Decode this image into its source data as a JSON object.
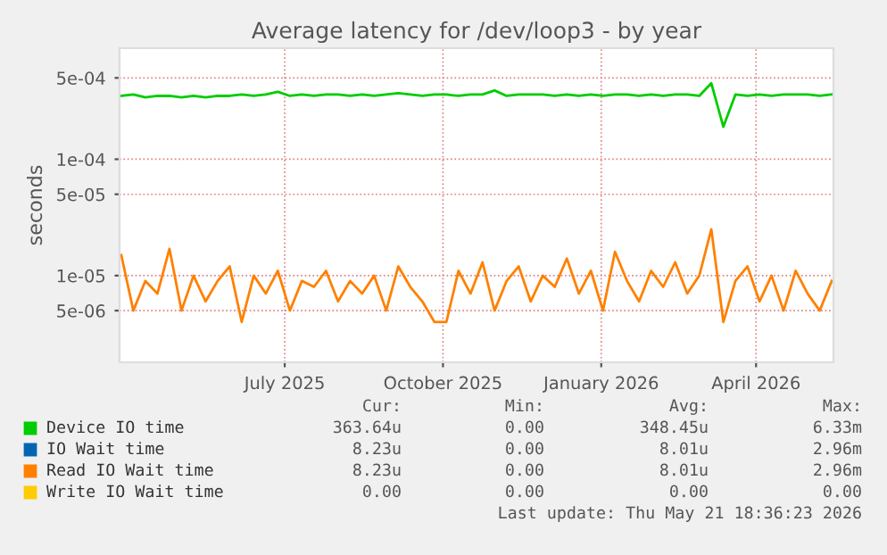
{
  "chart_data": {
    "type": "line",
    "title": "Average latency for /dev/loop3 - by year",
    "ylabel": "seconds",
    "log": "y",
    "grid": true,
    "legend": "bottom",
    "marker": "none",
    "line_style": "solid",
    "x": [
      "2025-03-28",
      "2025-04-04",
      "2025-04-11",
      "2025-04-18",
      "2025-04-25",
      "2025-05-02",
      "2025-05-09",
      "2025-05-16",
      "2025-05-23",
      "2025-05-30",
      "2025-06-06",
      "2025-06-13",
      "2025-06-20",
      "2025-06-27",
      "2025-07-04",
      "2025-07-11",
      "2025-07-18",
      "2025-07-25",
      "2025-08-01",
      "2025-08-08",
      "2025-08-15",
      "2025-08-22",
      "2025-08-29",
      "2025-09-05",
      "2025-09-12",
      "2025-09-19",
      "2025-09-26",
      "2025-10-03",
      "2025-10-10",
      "2025-10-17",
      "2025-10-24",
      "2025-10-31",
      "2025-11-07",
      "2025-11-14",
      "2025-11-21",
      "2025-11-28",
      "2025-12-05",
      "2025-12-12",
      "2025-12-19",
      "2025-12-26",
      "2026-01-02",
      "2026-01-09",
      "2026-01-16",
      "2026-01-23",
      "2026-01-30",
      "2026-02-06",
      "2026-02-13",
      "2026-02-20",
      "2026-02-27",
      "2026-03-06",
      "2026-03-13",
      "2026-03-20",
      "2026-03-27",
      "2026-04-03",
      "2026-04-10",
      "2026-04-17",
      "2026-04-24",
      "2026-05-01",
      "2026-05-08",
      "2026-05-15"
    ],
    "series": [
      {
        "name": "Device IO time",
        "color": "#00cc00",
        "values": [
          0.00035,
          0.00036,
          0.00034,
          0.00035,
          0.00035,
          0.00034,
          0.00035,
          0.00034,
          0.00035,
          0.00035,
          0.00036,
          0.00035,
          0.00036,
          0.00038,
          0.00035,
          0.00036,
          0.00035,
          0.00036,
          0.00036,
          0.00035,
          0.00036,
          0.00035,
          0.00036,
          0.00037,
          0.00036,
          0.00035,
          0.00036,
          0.00036,
          0.00035,
          0.00036,
          0.00036,
          0.00039,
          0.00035,
          0.00036,
          0.00036,
          0.00036,
          0.00035,
          0.00036,
          0.00035,
          0.00036,
          0.00035,
          0.00036,
          0.00036,
          0.00035,
          0.00036,
          0.00035,
          0.00036,
          0.00036,
          0.00035,
          0.00045,
          0.00019,
          0.00036,
          0.00035,
          0.00036,
          0.00035,
          0.00036,
          0.00036,
          0.00036,
          0.00035,
          0.00036
        ]
      },
      {
        "name": "IO Wait time",
        "color": "#0066b3",
        "values": [
          null,
          null,
          null,
          null,
          null,
          null,
          null,
          null,
          null,
          null,
          null,
          null,
          null,
          null,
          null,
          null,
          null,
          null,
          null,
          null,
          null,
          null,
          null,
          null,
          null,
          null,
          null,
          null,
          null,
          null,
          null,
          null,
          null,
          null,
          null,
          null,
          null,
          null,
          null,
          null,
          null,
          null,
          null,
          null,
          null,
          null,
          null,
          null,
          null,
          null,
          null,
          null,
          null,
          null,
          null,
          null,
          null,
          null,
          null,
          null
        ]
      },
      {
        "name": "Read IO Wait time",
        "color": "#ff8000",
        "values": [
          1.5e-05,
          5e-06,
          9e-06,
          7e-06,
          1.7e-05,
          5e-06,
          1e-05,
          6e-06,
          9e-06,
          1.2e-05,
          4e-06,
          1e-05,
          7e-06,
          1.1e-05,
          5e-06,
          9e-06,
          8e-06,
          1.1e-05,
          6e-06,
          9e-06,
          7e-06,
          1e-05,
          5e-06,
          1.2e-05,
          8e-06,
          6e-06,
          4e-06,
          4e-06,
          1.1e-05,
          7e-06,
          1.3e-05,
          5e-06,
          9e-06,
          1.2e-05,
          6e-06,
          1e-05,
          8e-06,
          1.4e-05,
          7e-06,
          1.1e-05,
          5e-06,
          1.6e-05,
          9e-06,
          6e-06,
          1.1e-05,
          8e-06,
          1.3e-05,
          7e-06,
          1e-05,
          2.5e-05,
          4e-06,
          9e-06,
          1.2e-05,
          6e-06,
          1e-05,
          5e-06,
          1.1e-05,
          7e-06,
          5e-06,
          9e-06
        ]
      },
      {
        "name": "Write IO Wait time",
        "color": "#ffcc00",
        "values": [
          null,
          null,
          null,
          null,
          null,
          null,
          null,
          null,
          null,
          null,
          null,
          null,
          null,
          null,
          null,
          null,
          null,
          null,
          null,
          null,
          null,
          null,
          null,
          null,
          null,
          null,
          null,
          null,
          null,
          null,
          null,
          null,
          null,
          null,
          null,
          null,
          null,
          null,
          null,
          null,
          null,
          null,
          null,
          null,
          null,
          null,
          null,
          null,
          null,
          null,
          null,
          null,
          null,
          null,
          null,
          null,
          null,
          null,
          null,
          null
        ]
      }
    ],
    "xlim": [
      "2025-03-27",
      "2026-05-16"
    ],
    "xticks": [
      {
        "value": "2025-07-01",
        "label": "July 2025"
      },
      {
        "value": "2025-10-01",
        "label": "October 2025"
      },
      {
        "value": "2026-01-01",
        "label": "January 2026"
      },
      {
        "value": "2026-04-01",
        "label": "April 2026"
      }
    ],
    "ylim": [
      1.8e-06,
      0.0009
    ],
    "yticks": [
      {
        "value": 5e-06,
        "label": "5e-06"
      },
      {
        "value": 1e-05,
        "label": "1e-05"
      },
      {
        "value": 5e-05,
        "label": "5e-05"
      },
      {
        "value": 0.0001,
        "label": "1e-04"
      },
      {
        "value": 0.0005,
        "label": "5e-04"
      }
    ],
    "annotations": [
      "Cur:",
      "Min:",
      "Avg:",
      "Max:",
      "363.64u",
      "0.00",
      "348.45u",
      "6.33m",
      "8.23u",
      "0.00",
      "8.01u",
      "2.96m",
      "8.23u",
      "0.00",
      "8.01u",
      "2.96m",
      "0.00",
      "0.00",
      "0.00",
      "0.00",
      "Last update: Thu May 21 18:36:23 2026"
    ]
  }
}
